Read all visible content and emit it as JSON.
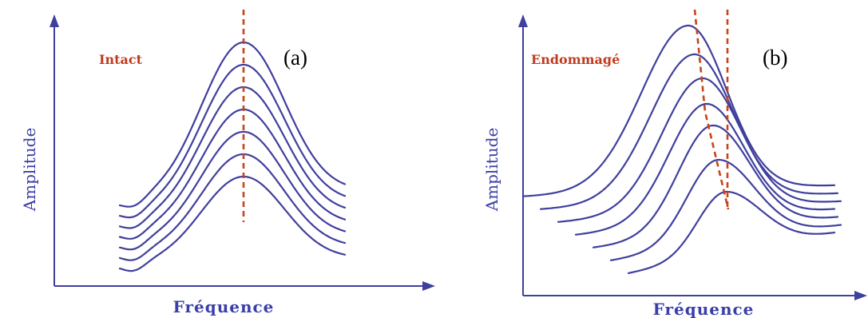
{
  "panels": [
    {
      "id": "a",
      "panel_label": "(a)",
      "state_label": "Intact",
      "y_axis_label": "Amplitude",
      "x_axis_label": "Fréquence",
      "curve_count": 7
    },
    {
      "id": "b",
      "panel_label": "(b)",
      "state_label": "Endommagé",
      "y_axis_label": "Amplitude",
      "x_axis_label": "Fréquence",
      "curve_count": 7
    }
  ],
  "colors": {
    "curve": "#3f3f9e",
    "axis": "#3f3f9e",
    "dashed_marker": "#c8441a",
    "state_text": "#c23a1e",
    "axis_text": "#3a3fa8"
  }
}
